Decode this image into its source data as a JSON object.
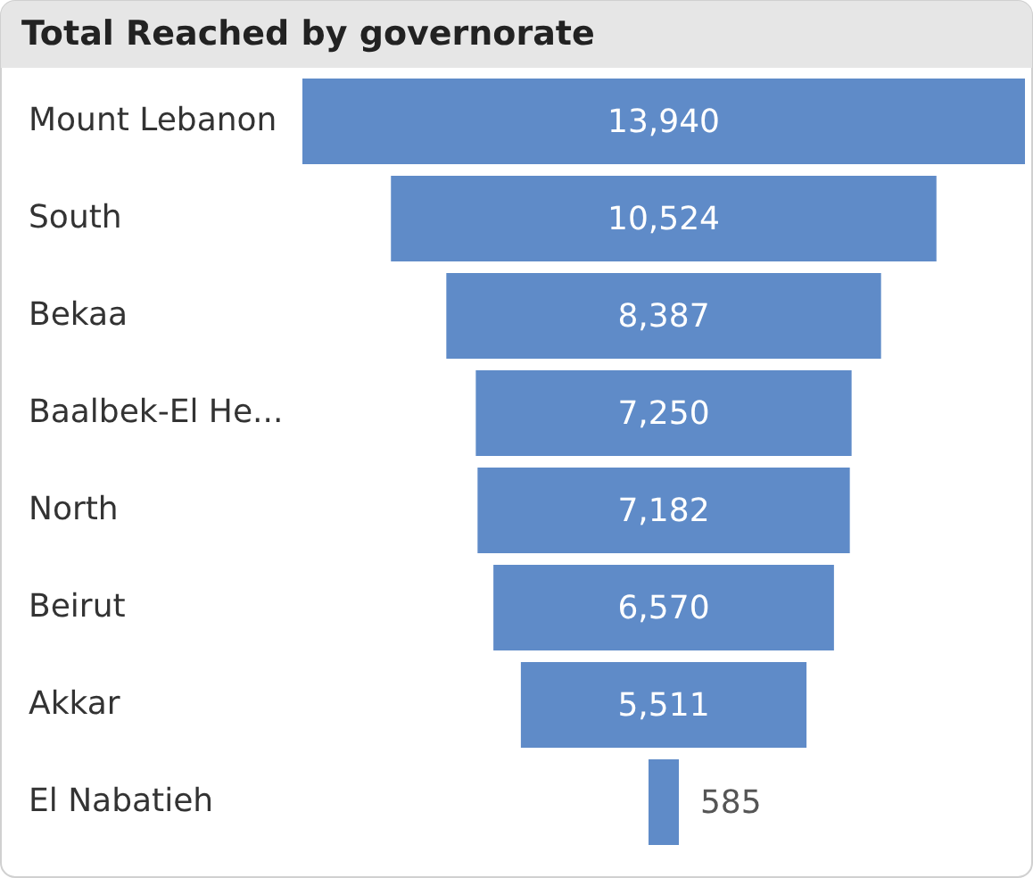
{
  "chart_data": {
    "type": "other",
    "title": "Total Reached by governorate",
    "categories": [
      "Mount Lebanon",
      "South",
      "Bekaa",
      "Baalbek-El He...",
      "North",
      "Beirut",
      "Akkar",
      "El Nabatieh"
    ],
    "values": [
      13940,
      10524,
      8387,
      7250,
      7182,
      6570,
      5511,
      585
    ],
    "value_labels": [
      "13,940",
      "10,524",
      "8,387",
      "7,250",
      "7,182",
      "6,570",
      "5,511",
      "585"
    ],
    "color": "#5f8bc8"
  }
}
